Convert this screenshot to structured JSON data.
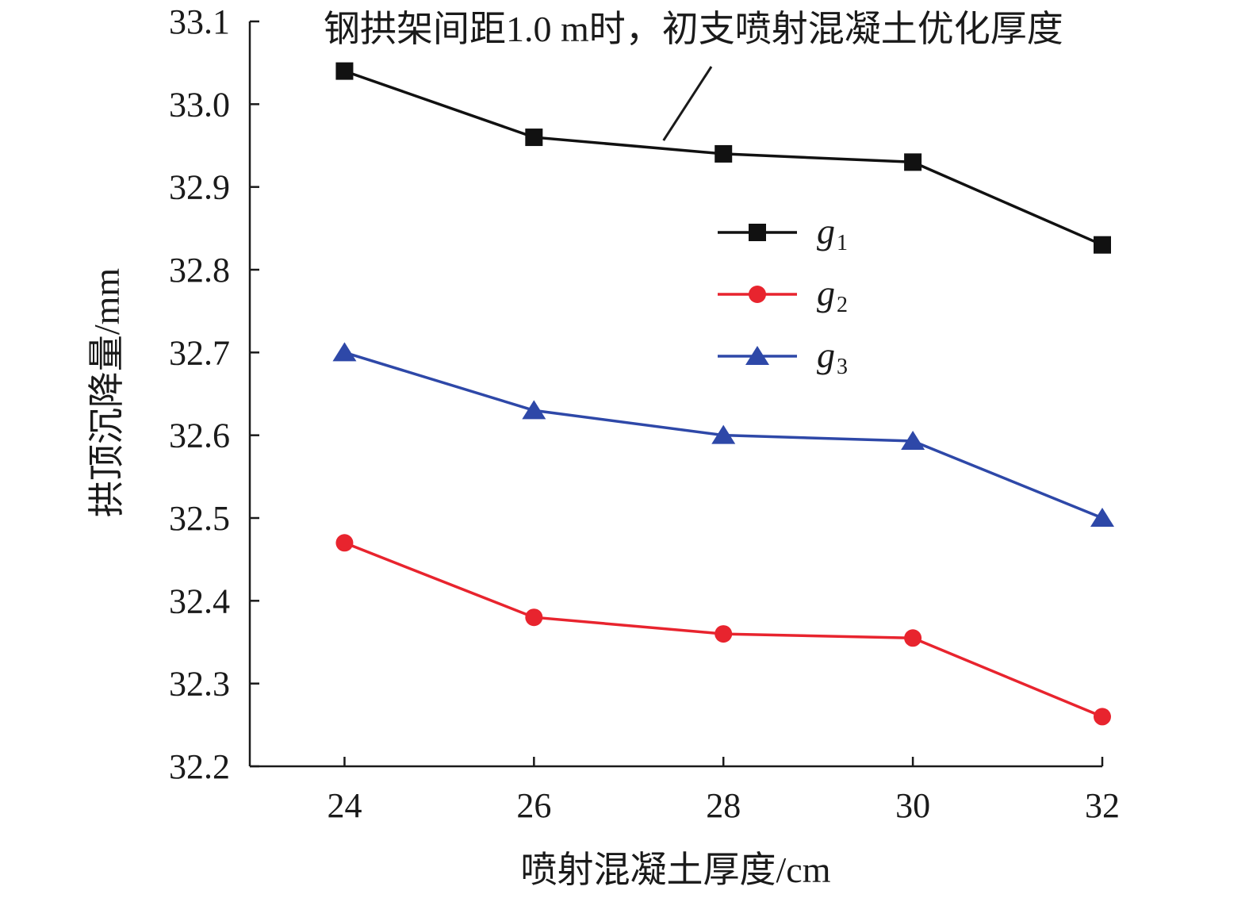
{
  "chart_data": {
    "type": "line",
    "title": "",
    "xlabel": "喷射混凝土厚度/cm",
    "ylabel": "拱顶沉降量/mm",
    "x": [
      24,
      26,
      28,
      30,
      32
    ],
    "xticks": [
      "24",
      "26",
      "28",
      "30",
      "32"
    ],
    "yticks": [
      "32.2",
      "32.3",
      "32.4",
      "32.5",
      "32.6",
      "32.7",
      "32.8",
      "32.9",
      "33.0",
      "33.1"
    ],
    "ylim": [
      32.2,
      33.1
    ],
    "xlim": [
      23,
      32
    ],
    "grid": false,
    "legend_position": "center-right",
    "series": [
      {
        "name": "g",
        "sub": "1",
        "color": "#111111",
        "marker": "square",
        "values": [
          33.04,
          32.96,
          32.94,
          32.93,
          32.83
        ]
      },
      {
        "name": "g",
        "sub": "2",
        "color": "#e8242e",
        "marker": "circle",
        "values": [
          32.47,
          32.38,
          32.36,
          32.355,
          32.26
        ]
      },
      {
        "name": "g",
        "sub": "3",
        "color": "#2e48a8",
        "marker": "triangle",
        "values": [
          32.7,
          32.63,
          32.6,
          32.593,
          32.5
        ]
      }
    ],
    "annotation": {
      "text": "钢拱架间距1.0 m时，初支喷射混凝土优化厚度",
      "points_to": {
        "x": 27.2,
        "y": 32.96
      }
    }
  }
}
